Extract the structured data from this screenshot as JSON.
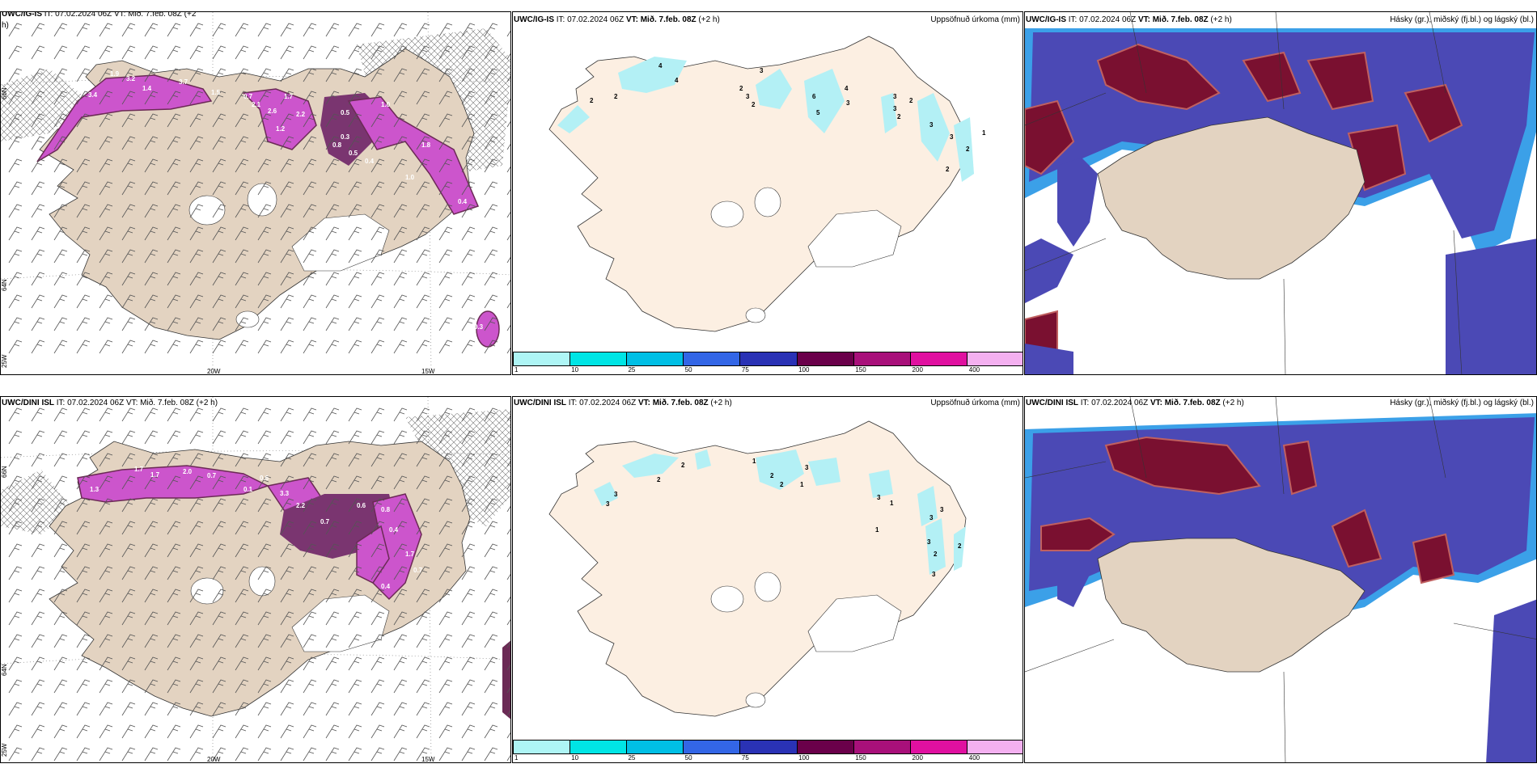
{
  "rows": [
    {
      "wind_panel": {
        "header_model": "UWC/IG-IS",
        "header_rest": " IT: 07.02.2024 06Z VT: Mið. 7.feb. 08Z (+2",
        "header_wrap": "h)",
        "lat_labels": [
          "66N",
          "64N",
          "25W"
        ],
        "lon_labels": [
          "20W",
          "15W"
        ],
        "precip_values": [
          "1.9",
          "3.2",
          "3.4",
          "1.4",
          "3.7",
          "1.5",
          "0.7",
          "2.1",
          "2.6",
          "1.7",
          "2.2",
          "1.2",
          "0.5",
          "1.0",
          "0.3",
          "0.8",
          "0.5",
          "0.4",
          "1.8",
          "1.0",
          "0.4",
          "0.3"
        ]
      },
      "accum_panel": {
        "header_model": "UWC/IG-IS",
        "header_it": " IT: 07.02.2024 06Z ",
        "header_vt": "VT: Mið. 7.feb. 08Z",
        "header_lead": " (+2 h)",
        "header_right": "Uppsöfnuð úrkoma (mm)",
        "contour_values": [
          "4",
          "4",
          "2",
          "2",
          "3",
          "3",
          "6",
          "4",
          "5",
          "3",
          "2",
          "2",
          "3",
          "3",
          "2",
          "2",
          "3",
          "3",
          "2",
          "2",
          "1"
        ],
        "colorbar_ticks": [
          "1",
          "10",
          "25",
          "50",
          "75",
          "100",
          "150",
          "200",
          "400"
        ]
      },
      "cloud_panel": {
        "header_model": "UWC/IG-IS",
        "header_it": " IT: 07.02.2024 06Z ",
        "header_vt": "VT: Mið. 7.feb. 08Z",
        "header_lead": " (+2 h)",
        "header_right": "Hásky (gr.), miðský (fj.bl.) og lágský (bl.)"
      }
    },
    {
      "wind_panel": {
        "header_model": "UWC/DINI ISL",
        "header_rest": " IT: 07.02.2024 06Z VT: Mið. 7.feb. 08Z (+2 h)",
        "header_wrap": "",
        "lat_labels": [
          "66N",
          "64N",
          "25W"
        ],
        "lon_labels": [
          "20W",
          "15W"
        ],
        "precip_values": [
          "1.3",
          "1.7",
          "1.7",
          "2.0",
          "0.7",
          "0.6",
          "0.1",
          "3.3",
          "2.2",
          "0.7",
          "0.6",
          "0.8",
          "0.4",
          "1.7",
          "0.7",
          "0.4"
        ]
      },
      "accum_panel": {
        "header_model": "UWC/DINI ISL",
        "header_it": " IT: 07.02.2024 06Z ",
        "header_vt": "VT: Mið. 7.feb. 08Z",
        "header_lead": " (+2 h)",
        "header_right": "Uppsöfnuð úrkoma (mm)",
        "contour_values": [
          "3",
          "3",
          "2",
          "2",
          "1",
          "1",
          "3",
          "2",
          "2",
          "3",
          "1",
          "1",
          "3",
          "3",
          "3",
          "2",
          "2",
          "3"
        ],
        "colorbar_ticks": [
          "1",
          "10",
          "25",
          "50",
          "75",
          "100",
          "150",
          "200",
          "400"
        ]
      },
      "cloud_panel": {
        "header_model": "UWC/DINI ISL",
        "header_it": " IT: 07.02.2024 06Z ",
        "header_vt": "VT: Mið. 7.feb. 08Z",
        "header_lead": " (+2 h)",
        "header_right": "Hásky (gr.), miðský (fj.bl.) og lágský (bl.)"
      }
    }
  ],
  "colors": {
    "land": "#e3d3c1",
    "land_light": "#fcefe2",
    "precip_light": "#b3f0f5",
    "precip_magenta": "#cc55cc",
    "precip_dark": "#6b2a55",
    "cloud_high": "#7a1030",
    "cloud_mid": "#4b49b5",
    "cloud_low": "#3ba0e8",
    "colorbar": [
      "#aef5f5",
      "#00e5e5",
      "#00bfe5",
      "#3366e6",
      "#2a32b5",
      "#6a004a",
      "#a8107a",
      "#e010a0",
      "#f4b0f0"
    ]
  }
}
